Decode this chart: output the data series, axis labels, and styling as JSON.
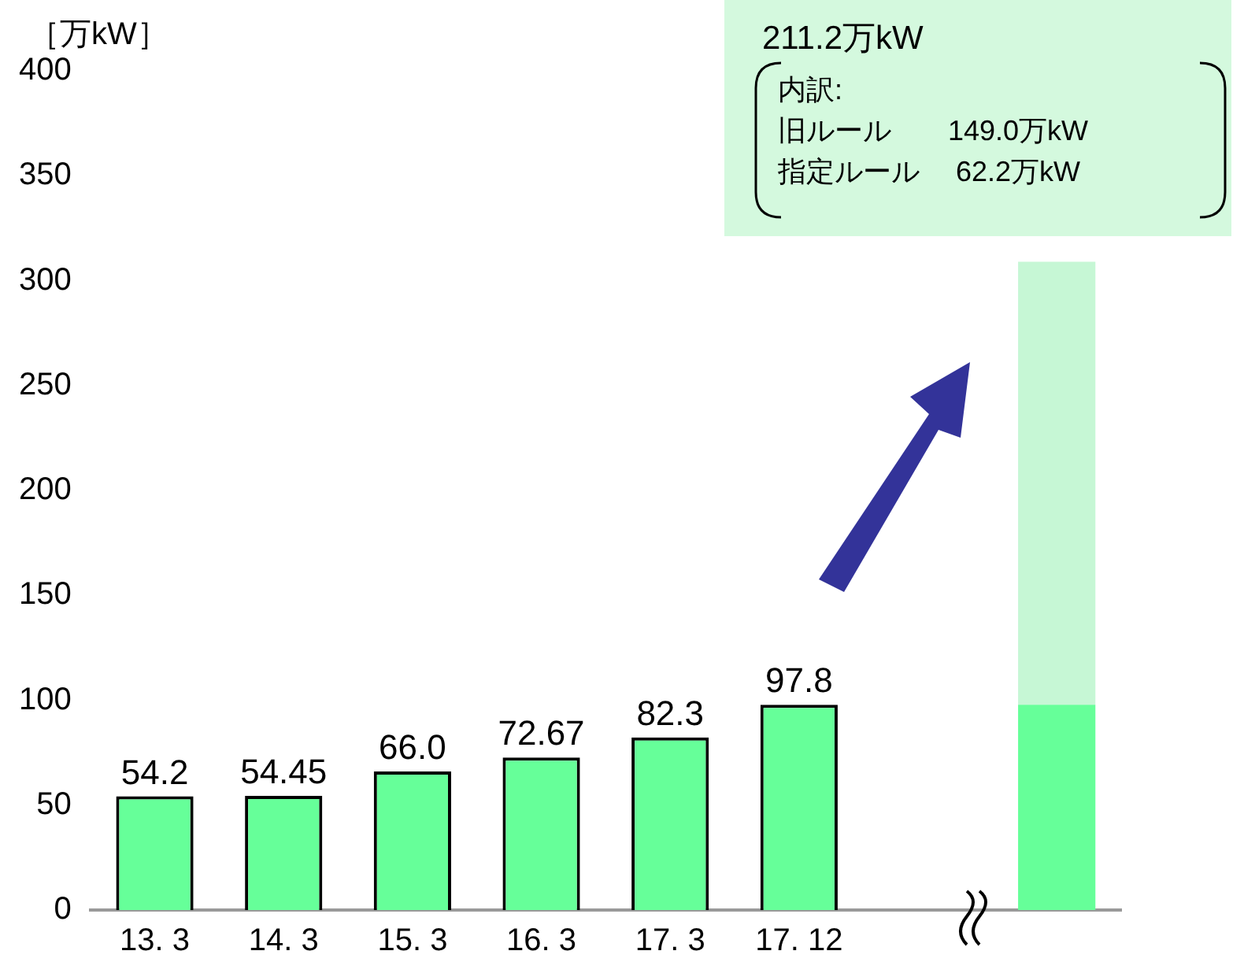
{
  "chart_data": {
    "type": "bar",
    "ylabel": "［万kW］",
    "categories": [
      "13. 3",
      "14. 3",
      "15. 3",
      "16. 3",
      "17. 3",
      "17. 12",
      null,
      null
    ],
    "stacked": true,
    "series": [
      {
        "color": "#66ff99",
        "values": [
          54.2,
          54.45,
          66.0,
          72.67,
          82.3,
          97.8,
          null,
          97.8
        ],
        "value_labels": [
          "54.2",
          "54.45",
          "66.0",
          "72.67",
          "82.3",
          "97.8",
          null,
          null
        ]
      },
      {
        "color": "#c6f7d5",
        "values": [
          null,
          null,
          null,
          null,
          null,
          null,
          null,
          211.2
        ]
      }
    ],
    "ylim": [
      0,
      400
    ],
    "yticks": [
      0,
      50,
      100,
      150,
      200,
      250,
      300,
      350,
      400
    ],
    "grid": false,
    "legend": false,
    "annotations": [
      "211.2万kW",
      "内訳:",
      "旧ルール　　149.0万kW",
      "指定ルール　 62.2万kW"
    ]
  }
}
